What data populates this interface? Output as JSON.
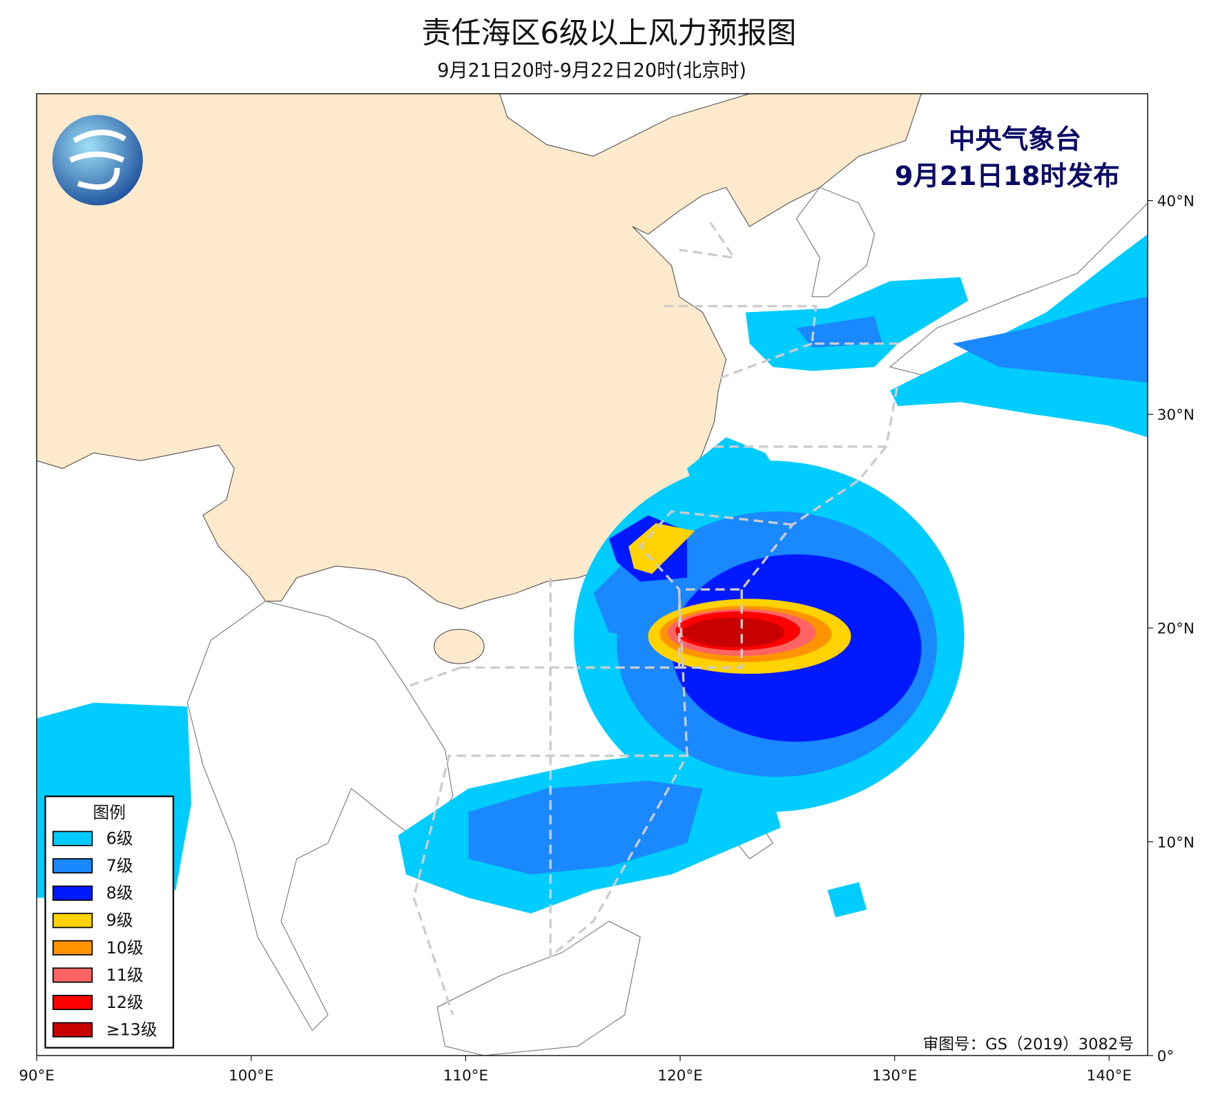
{
  "header": {
    "title": "责任海区6级以上风力预报图",
    "subtitle": "9月21日20时-9月22日20时(北京时)"
  },
  "publisher": {
    "name": "中央气象台",
    "issued": "9月21日18时发布"
  },
  "approval": "审图号：GS（2019）3082号",
  "map": {
    "xlim": [
      90,
      141.8
    ],
    "ylim": [
      0,
      45
    ],
    "xticks": [
      {
        "value": 90,
        "label": "90°E"
      },
      {
        "value": 100,
        "label": "100°E"
      },
      {
        "value": 110,
        "label": "110°E"
      },
      {
        "value": 120,
        "label": "120°E"
      },
      {
        "value": 130,
        "label": "130°E"
      },
      {
        "value": 140,
        "label": "140°E"
      }
    ],
    "yticks": [
      {
        "value": 0,
        "label": "0°"
      },
      {
        "value": 10,
        "label": "10°N"
      },
      {
        "value": 20,
        "label": "20°N"
      },
      {
        "value": 30,
        "label": "30°N"
      },
      {
        "value": 40,
        "label": "40°N"
      }
    ]
  },
  "legend": {
    "title": "图例",
    "items": [
      {
        "label": "6级",
        "color": "#00ccff"
      },
      {
        "label": "7级",
        "color": "#1a88ff"
      },
      {
        "label": "8级",
        "color": "#0019ff"
      },
      {
        "label": "9级",
        "color": "#ffd200"
      },
      {
        "label": "10级",
        "color": "#ff9400"
      },
      {
        "label": "11级",
        "color": "#ff6464"
      },
      {
        "label": "12级",
        "color": "#ff0000"
      },
      {
        "label": "≥13级",
        "color": "#c80000"
      }
    ]
  }
}
